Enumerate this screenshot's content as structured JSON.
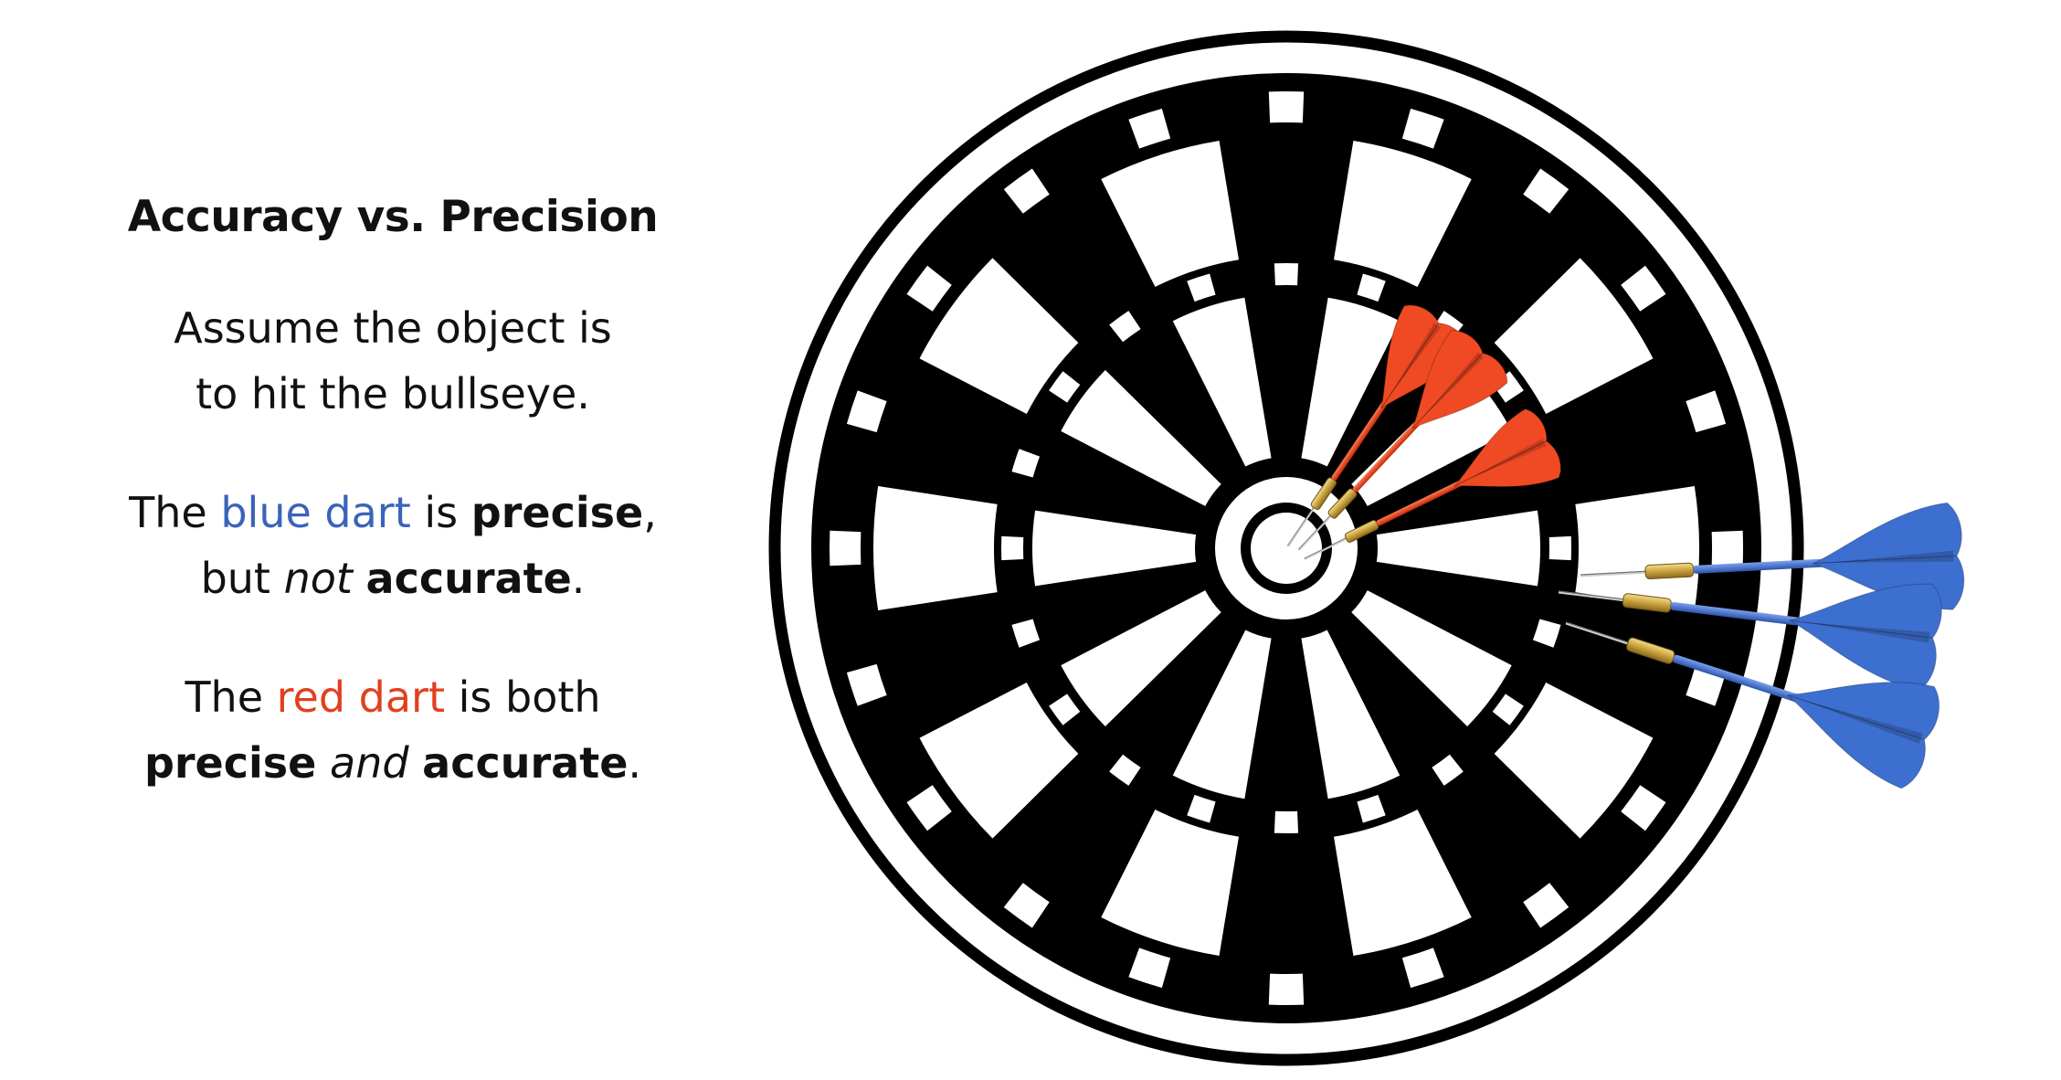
{
  "title": "Accuracy vs. Precision",
  "assume": {
    "line1": "Assume the object is",
    "line2": "to hit the bullseye."
  },
  "blue_statement": {
    "the": "The ",
    "colored": "blue dart",
    "is": " is ",
    "precise": "precise",
    "comma": ",",
    "but": "but ",
    "not": "not",
    "accurate": "accurate",
    "period": "."
  },
  "red_statement": {
    "the": "The ",
    "colored": "red dart",
    "is_both": " is both",
    "precise": "precise",
    "and": "and",
    "accurate": "accurate",
    "period": "."
  },
  "colors": {
    "blue_text": "#3a64b9",
    "red_text": "#e0401f",
    "red_flight": "#ef4a23",
    "blue_flight": "#3d6fd0",
    "board_black": "#000000",
    "board_white": "#ffffff",
    "brass": "#c9a23e"
  },
  "board": {
    "segment_count": 20
  },
  "darts": {
    "red_count": 3,
    "blue_count": 3
  }
}
